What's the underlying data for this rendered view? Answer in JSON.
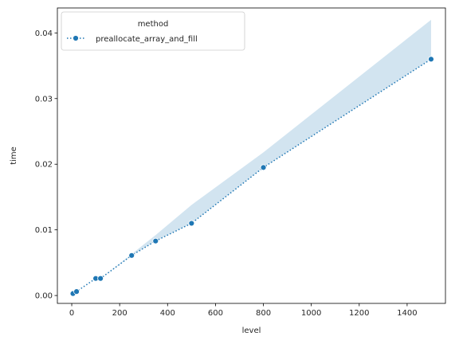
{
  "chart_data": {
    "type": "line",
    "title": "",
    "xlabel": "level",
    "ylabel": "time",
    "xlim": [
      -60,
      1560
    ],
    "ylim": [
      -0.0012,
      0.0438
    ],
    "xticks": [
      0,
      200,
      400,
      600,
      800,
      1000,
      1200,
      1400
    ],
    "xtick_labels": [
      "0",
      "200",
      "400",
      "600",
      "800",
      "1000",
      "1200",
      "1400"
    ],
    "yticks": [
      0.0,
      0.01,
      0.02,
      0.03,
      0.04
    ],
    "ytick_labels": [
      "0.00",
      "0.01",
      "0.02",
      "0.03",
      "0.04"
    ],
    "grid": false,
    "legend": {
      "title": "method",
      "position": "top-left"
    },
    "series": [
      {
        "name": "preallocate_array_and_fill",
        "color": "#1f77b4",
        "line_style": "dotted",
        "marker": "circle",
        "x": [
          5,
          20,
          100,
          120,
          250,
          350,
          500,
          800,
          1500
        ],
        "y": [
          0.0003,
          0.0006,
          0.0026,
          0.0026,
          0.0061,
          0.0083,
          0.011,
          0.0195,
          0.036
        ],
        "ci_lower": [
          0.0003,
          0.0006,
          0.0026,
          0.0026,
          0.0061,
          0.0083,
          0.011,
          0.0195,
          0.036
        ],
        "ci_upper": [
          0.0003,
          0.0006,
          0.0026,
          0.0026,
          0.0063,
          0.0092,
          0.0138,
          0.0218,
          0.042
        ]
      }
    ]
  }
}
